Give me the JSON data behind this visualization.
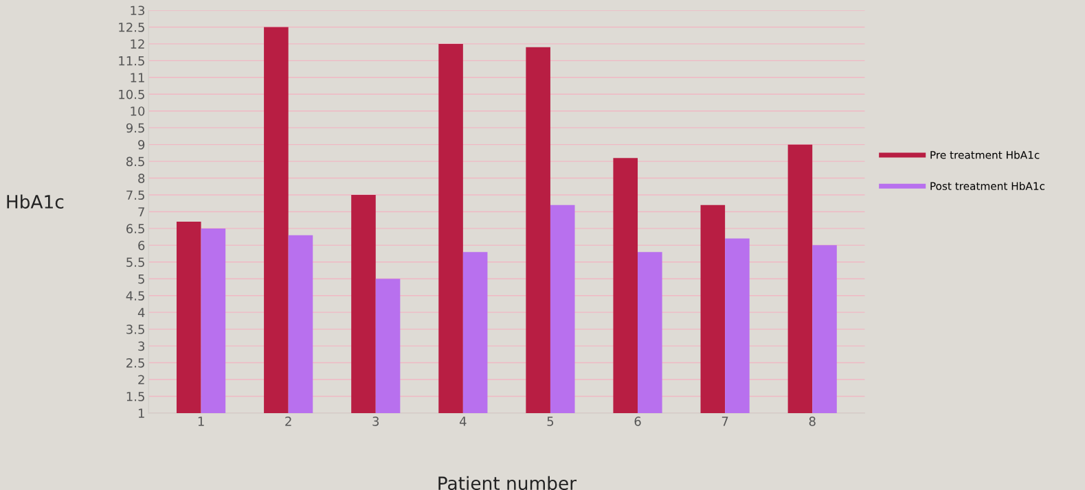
{
  "chart_data": {
    "type": "bar",
    "xlabel": "Patient number",
    "ylabel": "HbA1c",
    "categories": [
      "1",
      "2",
      "3",
      "4",
      "5",
      "6",
      "7",
      "8"
    ],
    "series": [
      {
        "name": "Pre treatment HbA1c",
        "color": "#b81e43",
        "values": [
          6.7,
          12.5,
          7.5,
          12.0,
          11.9,
          8.6,
          7.2,
          9.0
        ]
      },
      {
        "name": "Post treatment HbA1c",
        "color": "#b870ee",
        "values": [
          6.5,
          6.3,
          5.0,
          5.8,
          7.2,
          5.8,
          6.2,
          6.0
        ]
      }
    ],
    "ylim": [
      1,
      13
    ],
    "yticks": [
      1,
      1.5,
      2,
      2.5,
      3,
      3.5,
      4,
      4.5,
      5,
      5.5,
      6,
      6.5,
      7,
      7.5,
      8,
      8.5,
      9,
      9.5,
      10,
      10.5,
      11,
      11.5,
      12,
      12.5,
      13
    ],
    "grid": "y",
    "legend": "right"
  }
}
